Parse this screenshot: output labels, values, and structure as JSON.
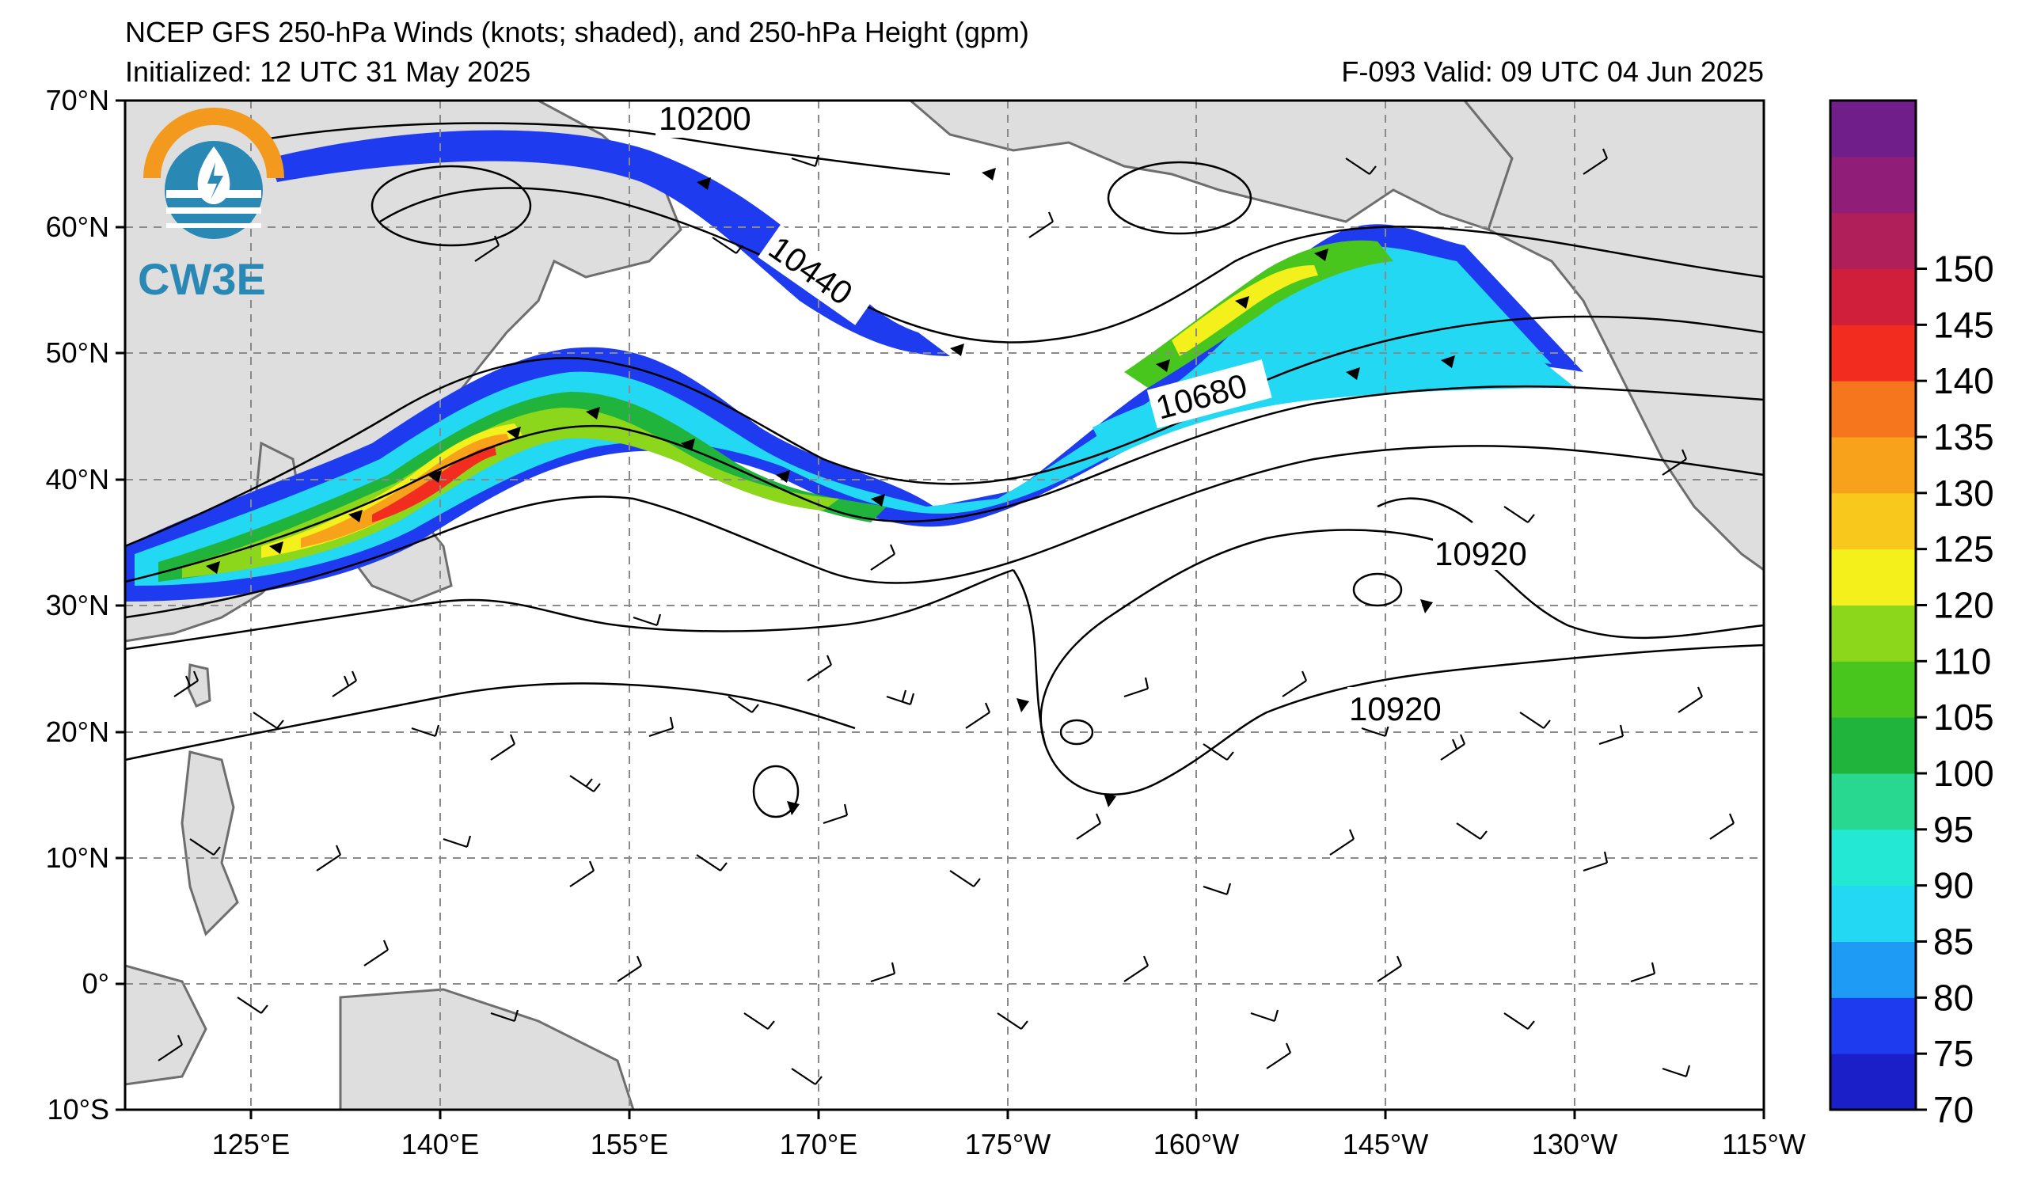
{
  "title": {
    "line1": "NCEP GFS 250-hPa Winds (knots; shaded), and 250-hPa Height (gpm)",
    "line2": "Initialized: 12 UTC 31 May 2025",
    "valid": "F-093  Valid: 09 UTC 04 Jun 2025"
  },
  "logo": {
    "text": "CW3E",
    "icon": "cw3e-logo-icon"
  },
  "lat_labels": [
    "70°N",
    "60°N",
    "50°N",
    "40°N",
    "30°N",
    "20°N",
    "10°N",
    "0°",
    "10°S"
  ],
  "lon_labels": [
    "125°E",
    "140°E",
    "155°E",
    "170°E",
    "175°W",
    "160°W",
    "145°W",
    "130°W",
    "115°W"
  ],
  "contour_labels": [
    "10200",
    "10440",
    "10680",
    "10920",
    "10920"
  ],
  "colorbar": {
    "ticks": [
      "70",
      "75",
      "80",
      "85",
      "90",
      "95",
      "100",
      "105",
      "110",
      "120",
      "125",
      "130",
      "135",
      "140",
      "145",
      "150"
    ],
    "colors": [
      "#1a1fc8",
      "#1f3bf0",
      "#1e9cf5",
      "#22d8f2",
      "#22e8d4",
      "#29d890",
      "#20b43c",
      "#49c61e",
      "#8cd61c",
      "#f4f01c",
      "#f9c81c",
      "#f8a21c",
      "#f5761c",
      "#f22d1f",
      "#cf1f3a",
      "#b01f5a",
      "#901e78",
      "#6f1e8a"
    ]
  },
  "colors": {
    "land": "#dedede",
    "coast": "#6e6e6e",
    "grid": "#8a8a8a"
  }
}
